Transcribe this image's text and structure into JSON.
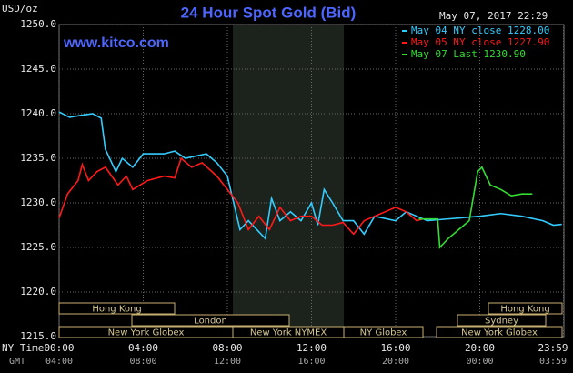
{
  "chart_data": {
    "type": "line",
    "title": "24 Hour Spot Gold (Bid)",
    "website": "www.kitco.com",
    "date": "May 07, 2017 22:29",
    "y_label": "USD/oz",
    "x_label": "NY Time",
    "x2_label": "GMT",
    "xlim": [
      0,
      24
    ],
    "ylim": [
      1215,
      1250
    ],
    "grid": true,
    "xticks": [
      {
        "value": 0,
        "label": "00:00"
      },
      {
        "value": 4,
        "label": "04:00"
      },
      {
        "value": 8,
        "label": "08:00"
      },
      {
        "value": 12,
        "label": "12:00"
      },
      {
        "value": 16,
        "label": "16:00"
      },
      {
        "value": 20,
        "label": "20:00"
      },
      {
        "value": 23.98,
        "label": "23:59"
      }
    ],
    "x2tick_labels": [
      "04:00",
      "08:00",
      "12:00",
      "16:00",
      "20:00",
      "00:00",
      "03:59"
    ],
    "yticks": [
      {
        "value": 1215,
        "label": "1215.0"
      },
      {
        "value": 1220,
        "label": "1220.0"
      },
      {
        "value": 1225,
        "label": "1225.0"
      },
      {
        "value": 1230,
        "label": "1230.0"
      },
      {
        "value": 1235,
        "label": "1235.0"
      },
      {
        "value": 1240,
        "label": "1240.0"
      },
      {
        "value": 1245,
        "label": "1245.0"
      },
      {
        "value": 1250,
        "label": "1250.0"
      }
    ],
    "sessions": [
      "Hong Kong",
      "London",
      "New York Globex",
      "New York NYMEX",
      "NY Globex",
      "Hong Kong",
      "Sydney",
      "New York Globex"
    ],
    "series": [
      {
        "name": "May 04 NY close 1228.00",
        "color": "#33ccff",
        "x": [
          0,
          0.5,
          1.0,
          1.6,
          2.0,
          2.2,
          2.7,
          3.0,
          3.5,
          4.0,
          5.0,
          5.5,
          6.0,
          7.0,
          7.5,
          8.0,
          8.3,
          8.6,
          9.0,
          9.8,
          10.1,
          10.5,
          11.0,
          11.5,
          12.0,
          12.3,
          12.6,
          13.0,
          13.5,
          14.0,
          14.5,
          15.0,
          16.0,
          16.5,
          17.5,
          18.5,
          20.0,
          21.0,
          22.0,
          23.0,
          23.5,
          23.9
        ],
        "values": [
          1240.2,
          1239.6,
          1239.8,
          1240.0,
          1239.5,
          1236.0,
          1233.5,
          1235.0,
          1234.0,
          1235.5,
          1235.5,
          1235.8,
          1235.0,
          1235.5,
          1234.5,
          1233.0,
          1230.0,
          1227.0,
          1228.0,
          1226.0,
          1230.5,
          1228.0,
          1229.0,
          1228.0,
          1230.0,
          1227.5,
          1231.5,
          1230.0,
          1228.0,
          1228.0,
          1226.5,
          1228.5,
          1228.0,
          1229.0,
          1228.0,
          1228.2,
          1228.5,
          1228.8,
          1228.5,
          1228.0,
          1227.5,
          1227.6
        ]
      },
      {
        "name": "May 05 NY close 1227.90",
        "color": "#ff1a1a",
        "x": [
          0,
          0.4,
          0.9,
          1.1,
          1.4,
          1.8,
          2.2,
          2.8,
          3.2,
          3.5,
          4.2,
          5.0,
          5.5,
          5.8,
          6.3,
          6.8,
          7.5,
          8.0,
          8.5,
          9.0,
          9.5,
          10.0,
          10.5,
          11.0,
          11.5,
          12.0,
          12.5,
          13.0,
          13.5,
          14.0,
          14.5,
          15.0,
          16.0,
          16.5,
          17.0,
          17.3
        ],
        "values": [
          1228.3,
          1231.0,
          1232.5,
          1234.3,
          1232.5,
          1233.5,
          1234.0,
          1232.0,
          1233.0,
          1231.5,
          1232.5,
          1233.0,
          1232.8,
          1235.0,
          1234.0,
          1234.5,
          1233.0,
          1231.5,
          1230.0,
          1227.0,
          1228.5,
          1227.0,
          1229.5,
          1228.0,
          1228.5,
          1228.5,
          1227.5,
          1227.5,
          1227.8,
          1226.5,
          1228.0,
          1228.5,
          1229.5,
          1229.0,
          1228.0,
          1228.2
        ]
      },
      {
        "name": "May 07 Last 1230.90",
        "color": "#33dd33",
        "x": [
          17.1,
          18.0,
          18.1,
          18.5,
          19.0,
          19.5,
          19.9,
          20.1,
          20.5,
          21.0,
          21.5,
          22.0,
          22.5
        ],
        "values": [
          1228.2,
          1228.2,
          1225.0,
          1226.0,
          1227.0,
          1228.0,
          1233.5,
          1234.0,
          1232.0,
          1231.5,
          1230.8,
          1231.0,
          1231.0
        ]
      }
    ]
  }
}
